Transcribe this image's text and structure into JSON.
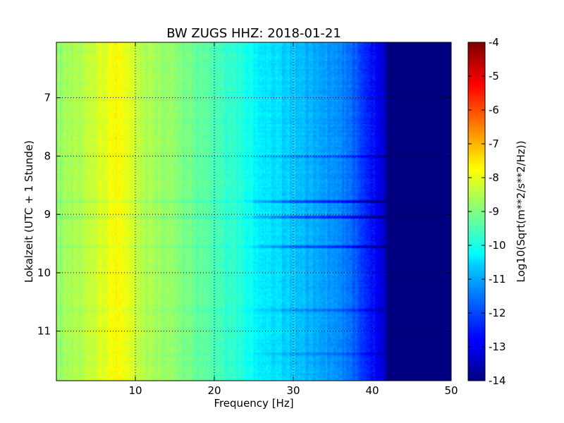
{
  "chart_data": {
    "type": "heatmap",
    "title": "BW ZUGS HHZ: 2018-01-21",
    "xlabel": "Frequency [Hz]",
    "ylabel": "Lokalzeit (UTC + 1 Stunde)",
    "xlim": [
      0,
      50
    ],
    "ylim": [
      6.05,
      11.85
    ],
    "y_inverted": true,
    "x_ticks": [
      "10",
      "20",
      "30",
      "40",
      "50"
    ],
    "y_ticks": [
      "7",
      "8",
      "9",
      "10",
      "11"
    ],
    "grid": true,
    "colormap": "jet",
    "colorbar": {
      "label": "Log10(Sqrt(m**2/s**2/Hz))",
      "range": [
        -14,
        -4
      ],
      "ticks": [
        "-4",
        "-5",
        "-6",
        "-7",
        "-8",
        "-9",
        "-10",
        "-11",
        "-12",
        "-13",
        "-14"
      ]
    },
    "frequency_profile": {
      "frequency_hz": [
        0,
        2,
        5,
        7,
        8,
        9,
        10,
        12,
        15,
        17,
        20,
        22,
        24,
        25,
        27,
        30,
        33,
        35,
        37,
        38.5,
        40,
        41.5,
        42,
        50
      ],
      "log10_amplitude": [
        -8.8,
        -8.6,
        -8.2,
        -7.9,
        -7.7,
        -7.9,
        -8.3,
        -8.6,
        -8.9,
        -9.2,
        -9.5,
        -9.8,
        -10.0,
        -10.2,
        -10.5,
        -10.8,
        -11.1,
        -11.3,
        -11.6,
        -12.0,
        -12.6,
        -13.3,
        -14.0,
        -14.0
      ]
    },
    "horizontal_features": [
      {
        "time": 8.77,
        "log10_offset": -1.2
      },
      {
        "time": 9.05,
        "log10_offset": -1.1
      },
      {
        "time": 9.55,
        "log10_offset": -1.0
      },
      {
        "time": 8.0,
        "log10_offset": -0.5
      },
      {
        "time": 10.65,
        "log10_offset": -0.5
      },
      {
        "time": 11.4,
        "log10_offset": -0.4
      }
    ]
  }
}
